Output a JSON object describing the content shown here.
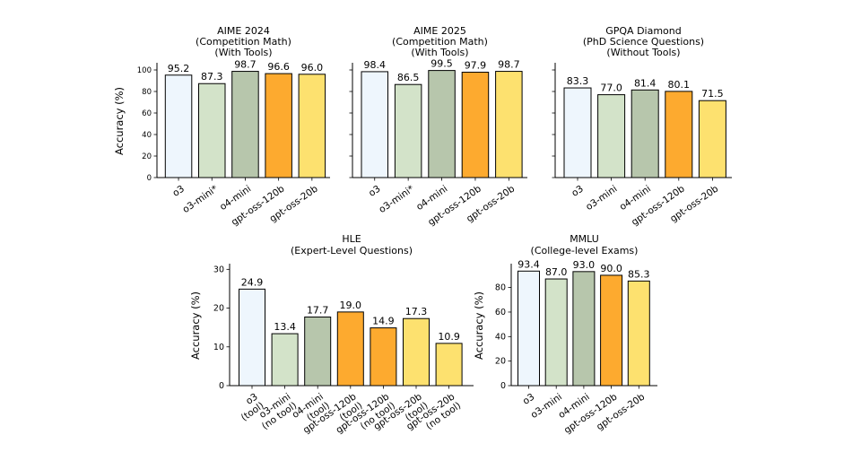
{
  "chart_data": [
    {
      "type": "bar",
      "title": [
        "AIME 2024",
        "(Competition Math)",
        "(With Tools)"
      ],
      "ylabel": "Accuracy (%)",
      "ylim": [
        0,
        105
      ],
      "yticks": [
        0,
        20,
        40,
        60,
        80,
        100
      ],
      "categories": [
        [
          "o3"
        ],
        [
          "o3-mini*"
        ],
        [
          "o4-mini"
        ],
        [
          "gpt-oss-120b"
        ],
        [
          "gpt-oss-20b"
        ]
      ],
      "values": [
        95.2,
        87.3,
        98.7,
        96.6,
        96.0
      ],
      "value_labels": [
        "95.2",
        "87.3",
        "98.7",
        "96.6",
        "96.0"
      ],
      "colors": [
        "#eef6fd",
        "#d3e3c9",
        "#b7c6ac",
        "#fdaa2f",
        "#fde16f"
      ],
      "show_ytick_labels": true
    },
    {
      "type": "bar",
      "title": [
        "AIME 2025",
        "(Competition Math)",
        "(With Tools)"
      ],
      "ylim": [
        0,
        105
      ],
      "yticks": [
        0,
        20,
        40,
        60,
        80,
        100
      ],
      "categories": [
        [
          "o3"
        ],
        [
          "o3-mini*"
        ],
        [
          "o4-mini"
        ],
        [
          "gpt-oss-120b"
        ],
        [
          "gpt-oss-20b"
        ]
      ],
      "values": [
        98.4,
        86.5,
        99.5,
        97.9,
        98.7
      ],
      "value_labels": [
        "98.4",
        "86.5",
        "99.5",
        "97.9",
        "98.7"
      ],
      "colors": [
        "#eef6fd",
        "#d3e3c9",
        "#b7c6ac",
        "#fdaa2f",
        "#fde16f"
      ],
      "show_ytick_labels": false
    },
    {
      "type": "bar",
      "title": [
        "GPQA Diamond",
        "(PhD Science Questions)",
        "(Without Tools)"
      ],
      "ylim": [
        0,
        105
      ],
      "yticks": [
        0,
        20,
        40,
        60,
        80,
        100
      ],
      "categories": [
        [
          "o3"
        ],
        [
          "o3-mini"
        ],
        [
          "o4-mini"
        ],
        [
          "gpt-oss-120b"
        ],
        [
          "gpt-oss-20b"
        ]
      ],
      "values": [
        83.3,
        77.0,
        81.4,
        80.1,
        71.5
      ],
      "value_labels": [
        "83.3",
        "77.0",
        "81.4",
        "80.1",
        "71.5"
      ],
      "colors": [
        "#eef6fd",
        "#d3e3c9",
        "#b7c6ac",
        "#fdaa2f",
        "#fde16f"
      ],
      "show_ytick_labels": false
    },
    {
      "type": "bar",
      "title": [
        "HLE",
        "(Expert-Level Questions)"
      ],
      "ylabel": "Accuracy (%)",
      "ylim": [
        0,
        31
      ],
      "yticks": [
        0,
        10,
        20,
        30
      ],
      "categories": [
        [
          "o3",
          "(tool)"
        ],
        [
          "o3-mini",
          "(no tool)"
        ],
        [
          "o4-mini",
          "(tool)"
        ],
        [
          "gpt-oss-120b",
          "(tool)"
        ],
        [
          "gpt-oss-120b",
          "(no tool)"
        ],
        [
          "gpt-oss-20b",
          "(tool)"
        ],
        [
          "gpt-oss-20b",
          "(no tool)"
        ]
      ],
      "values": [
        24.9,
        13.4,
        17.7,
        19.0,
        14.9,
        17.3,
        10.9
      ],
      "value_labels": [
        "24.9",
        "13.4",
        "17.7",
        "19.0",
        "14.9",
        "17.3",
        "10.9"
      ],
      "colors": [
        "#eef6fd",
        "#d3e3c9",
        "#b7c6ac",
        "#fdaa2f",
        "#fdaa2f",
        "#fde16f",
        "#fde16f"
      ],
      "show_ytick_labels": true
    },
    {
      "type": "bar",
      "title": [
        "MMLU",
        "(College-level Exams)"
      ],
      "ylabel": "Accuracy (%)",
      "ylim": [
        0,
        98
      ],
      "yticks": [
        0,
        20,
        40,
        60,
        80
      ],
      "categories": [
        [
          "o3"
        ],
        [
          "o3-mini"
        ],
        [
          "o4-mini"
        ],
        [
          "gpt-oss-120b"
        ],
        [
          "gpt-oss-20b"
        ]
      ],
      "values": [
        93.4,
        87.0,
        93.0,
        90.0,
        85.3
      ],
      "value_labels": [
        "93.4",
        "87.0",
        "93.0",
        "90.0",
        "85.3"
      ],
      "colors": [
        "#eef6fd",
        "#d3e3c9",
        "#b7c6ac",
        "#fdaa2f",
        "#fde16f"
      ],
      "show_ytick_labels": true
    }
  ]
}
